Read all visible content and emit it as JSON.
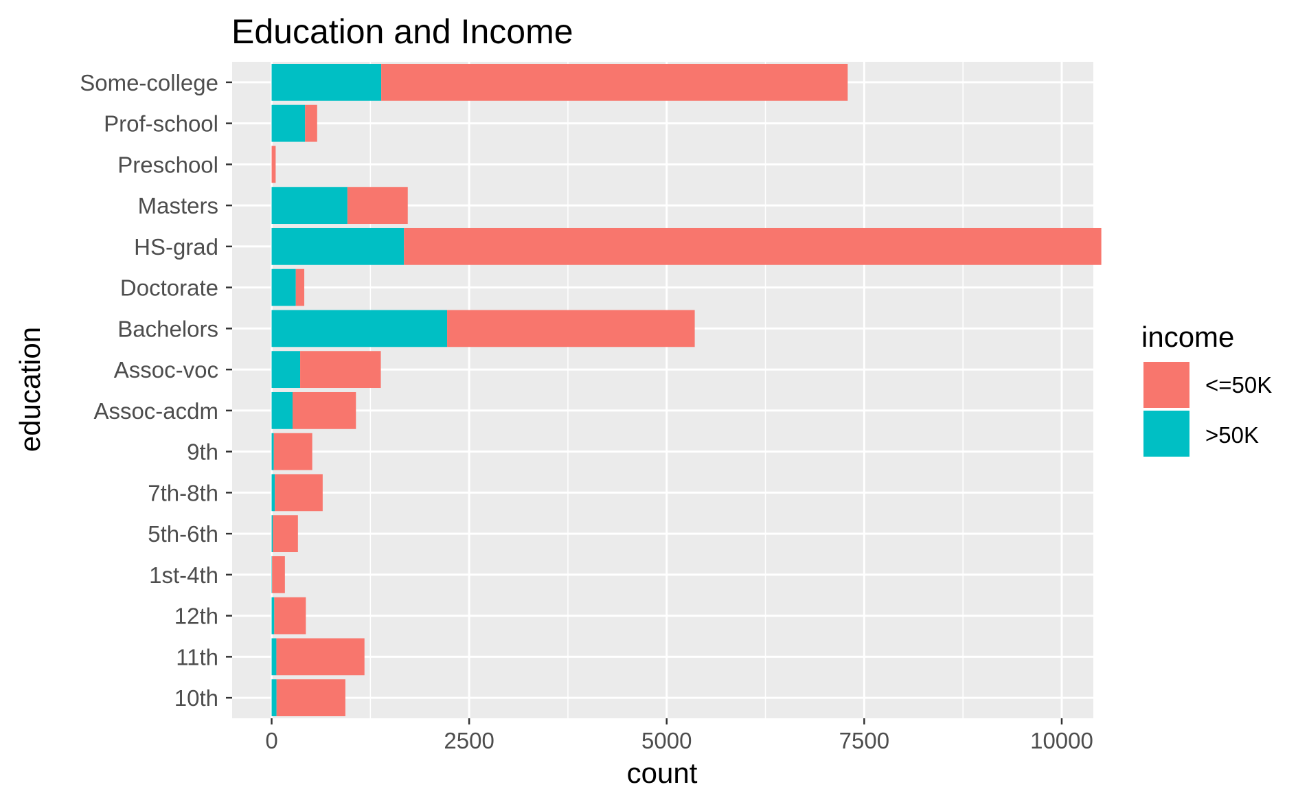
{
  "chart_data": {
    "type": "bar",
    "orientation": "horizontal",
    "stacked": true,
    "title": "Education and Income",
    "xlabel": "count",
    "ylabel": "education",
    "xlim": [
      -500,
      10400
    ],
    "xticks": [
      0,
      2500,
      5000,
      7500,
      10000
    ],
    "xtick_labels": [
      "0",
      "2500",
      "5000",
      "7500",
      "10000"
    ],
    "categories": [
      "10th",
      "11th",
      "12th",
      "1st-4th",
      "5th-6th",
      "7th-8th",
      "9th",
      "Assoc-acdm",
      "Assoc-voc",
      "Bachelors",
      "Doctorate",
      "HS-grad",
      "Masters",
      "Preschool",
      "Prof-school",
      "Some-college"
    ],
    "series": [
      {
        "name": ">50K",
        "color": "#00BFC4",
        "values": [
          62,
          60,
          33,
          6,
          16,
          40,
          27,
          265,
          361,
          2221,
          306,
          1675,
          959,
          0,
          423,
          1387
        ]
      },
      {
        "name": "<=50K",
        "color": "#F8766D",
        "values": [
          871,
          1115,
          400,
          162,
          317,
          606,
          487,
          802,
          1021,
          3134,
          107,
          8826,
          764,
          51,
          153,
          5904
        ]
      }
    ],
    "legend": {
      "title": "income",
      "position": "right",
      "entries": [
        {
          "label": "<=50K",
          "color": "#F8766D"
        },
        {
          "label": ">50K",
          "color": "#00BFC4"
        }
      ]
    },
    "grid": true,
    "panel_background": "#EBEBEB",
    "grid_color": "#FFFFFF"
  }
}
